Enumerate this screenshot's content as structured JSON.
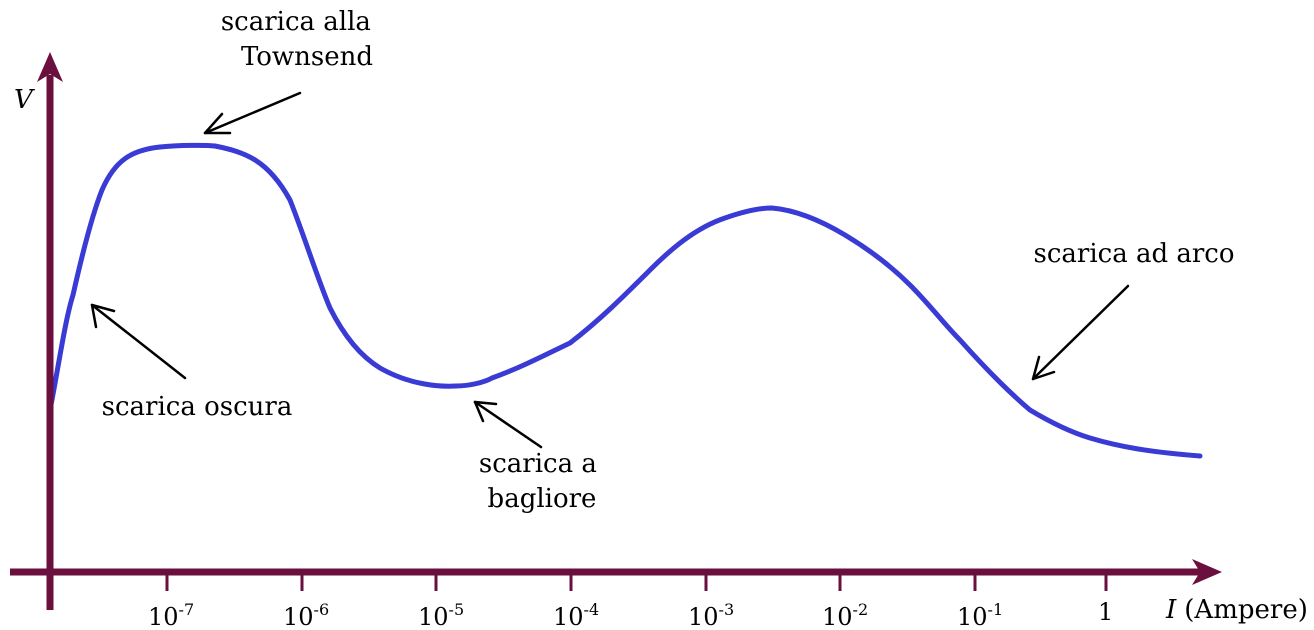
{
  "colors": {
    "axis": "#6b0f3f",
    "curve": "#3a3ad4",
    "arrow": "#000000"
  },
  "axes": {
    "y_label": "V",
    "x_label_italic": "I",
    "x_label_unit": "(Ampere)"
  },
  "x_ticks": [
    {
      "base": "10",
      "exp": "-7"
    },
    {
      "base": "10",
      "exp": "-6"
    },
    {
      "base": "10",
      "exp": "-5"
    },
    {
      "base": "10",
      "exp": "-4"
    },
    {
      "base": "10",
      "exp": "-3"
    },
    {
      "base": "10",
      "exp": "-2"
    },
    {
      "base": "10",
      "exp": "-1"
    },
    {
      "base": "1",
      "exp": ""
    }
  ],
  "annotations": {
    "townsend": [
      "scarica alla",
      "Townsend"
    ],
    "oscura": [
      "scarica oscura"
    ],
    "bagliore": [
      "scarica a",
      "bagliore"
    ],
    "arco": [
      "scarica ad arco"
    ]
  }
}
